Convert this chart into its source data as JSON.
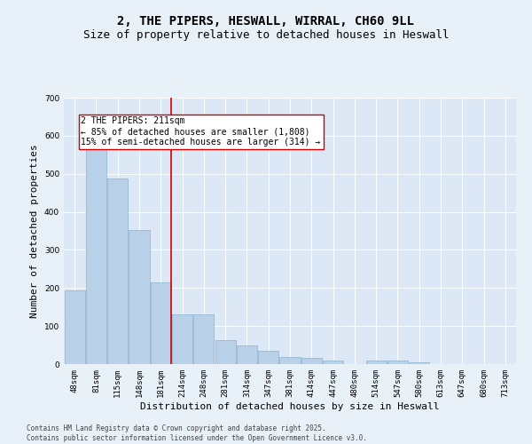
{
  "title_line1": "2, THE PIPERS, HESWALL, WIRRAL, CH60 9LL",
  "title_line2": "Size of property relative to detached houses in Heswall",
  "xlabel": "Distribution of detached houses by size in Heswall",
  "ylabel": "Number of detached properties",
  "background_color": "#dce8f5",
  "fig_background_color": "#e8f0f8",
  "bar_color": "#b8d0e8",
  "bar_edge_color": "#8ab0d0",
  "annotation_line_color": "#cc0000",
  "categories": [
    "48sqm",
    "81sqm",
    "115sqm",
    "148sqm",
    "181sqm",
    "214sqm",
    "248sqm",
    "281sqm",
    "314sqm",
    "347sqm",
    "381sqm",
    "414sqm",
    "447sqm",
    "480sqm",
    "514sqm",
    "547sqm",
    "580sqm",
    "613sqm",
    "647sqm",
    "680sqm",
    "713sqm"
  ],
  "values": [
    193,
    590,
    488,
    352,
    215,
    130,
    130,
    62,
    48,
    35,
    18,
    16,
    9,
    0,
    10,
    10,
    5,
    0,
    0,
    0,
    0
  ],
  "annotation_text_line1": "2 THE PIPERS: 211sqm",
  "annotation_text_line2": "← 85% of detached houses are smaller (1,808)",
  "annotation_text_line3": "15% of semi-detached houses are larger (314) →",
  "property_bar_index": 5,
  "ylim": [
    0,
    700
  ],
  "yticks": [
    0,
    100,
    200,
    300,
    400,
    500,
    600,
    700
  ],
  "footer_line1": "Contains HM Land Registry data © Crown copyright and database right 2025.",
  "footer_line2": "Contains public sector information licensed under the Open Government Licence v3.0.",
  "title_fontsize": 10,
  "subtitle_fontsize": 9,
  "axis_label_fontsize": 8,
  "tick_fontsize": 6.5,
  "annotation_fontsize": 7,
  "footer_fontsize": 5.5
}
